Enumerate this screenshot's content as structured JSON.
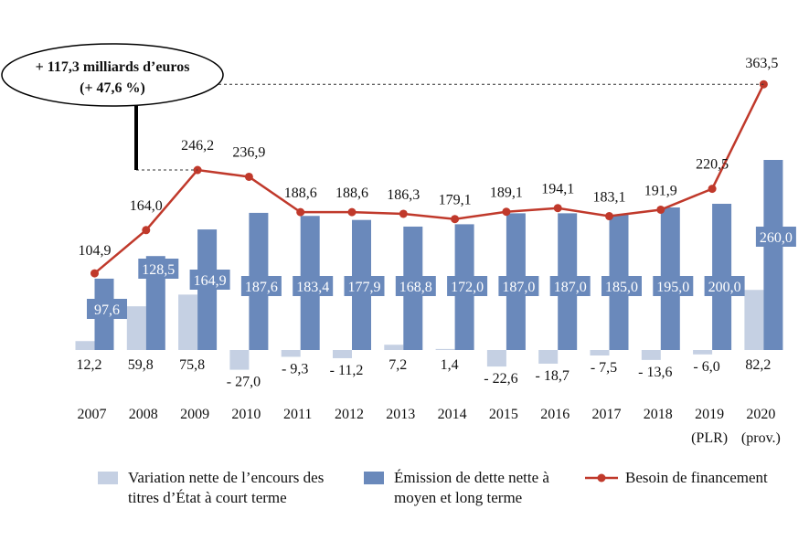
{
  "chart_data": {
    "type": "bar+line",
    "categories": [
      "2007",
      "2008",
      "2009",
      "2010",
      "2011",
      "2012",
      "2013",
      "2014",
      "2015",
      "2016",
      "2017",
      "2018",
      "2019",
      "2020"
    ],
    "category_sublabels": [
      "",
      "",
      "",
      "",
      "",
      "",
      "",
      "",
      "",
      "",
      "",
      "",
      "(PLR)",
      "(prov.)"
    ],
    "series": [
      {
        "name": "Variation nette de l’encours des titres d’État à court terme",
        "kind": "bar",
        "color": "#c5d0e3",
        "values": [
          12.2,
          59.8,
          75.8,
          -27.0,
          -9.3,
          -11.2,
          7.2,
          1.4,
          -22.6,
          -18.7,
          -7.5,
          -13.6,
          -6.0,
          82.2
        ],
        "labels": [
          "12,2",
          "59,8",
          "75,8",
          "- 27,0",
          "- 9,3",
          "- 11,2",
          "7,2",
          "1,4",
          "- 22,6",
          "- 18,7",
          "- 7,5",
          "- 13,6",
          "- 6,0",
          "82,2"
        ]
      },
      {
        "name": "Émission de dette nette à moyen et long terme",
        "kind": "bar",
        "color": "#6a89bb",
        "values": [
          97.6,
          128.5,
          164.9,
          187.6,
          183.4,
          177.9,
          168.8,
          172.0,
          187.0,
          187.0,
          185.0,
          195.0,
          200.0,
          260.0
        ],
        "labels": [
          "97,6",
          "128,5",
          "164,9",
          "187,6",
          "183,4",
          "177,9",
          "168,8",
          "172,0",
          "187,0",
          "187,0",
          "185,0",
          "195,0",
          "200,0",
          "260,0"
        ]
      },
      {
        "name": "Besoin de financement",
        "kind": "line",
        "color": "#c0392b",
        "values": [
          104.9,
          164.0,
          246.2,
          236.9,
          188.6,
          188.6,
          186.3,
          179.1,
          189.1,
          194.1,
          183.1,
          191.9,
          220.5,
          363.5
        ],
        "labels": [
          "104,9",
          "164,0",
          "246,2",
          "236,9",
          "188,6",
          "188,6",
          "186,3",
          "179,1",
          "189,1",
          "194,1",
          "183,1",
          "191,9",
          "220,5",
          "363,5"
        ]
      }
    ],
    "annotation": {
      "line1": "+ 117,3 milliards d’euros",
      "line2": "(+ 47,6 %)",
      "from": 246.2,
      "to": 363.5
    },
    "grid": false,
    "legend_position": "bottom"
  }
}
